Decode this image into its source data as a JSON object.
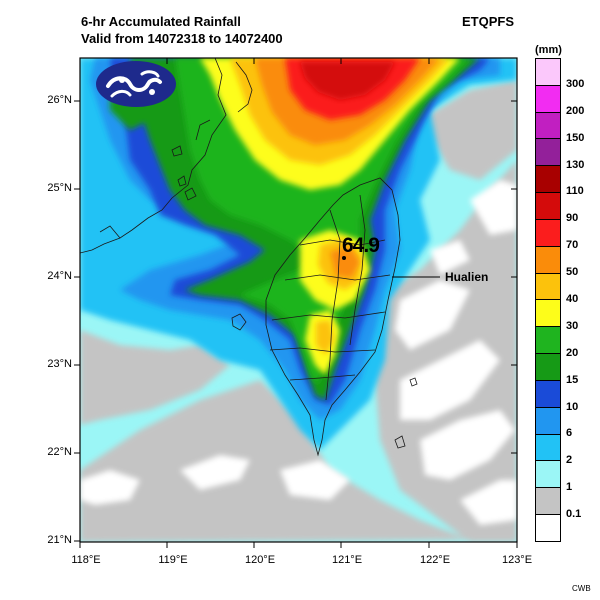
{
  "title": {
    "line1": "6-hr Accumulated Rainfall",
    "line2": "Valid from 14072318 to 14072400"
  },
  "model": "ETQPFS",
  "unit": "(mm)",
  "credit": "CWB",
  "logo_icon": "cwb-wave-logo-icon",
  "map": {
    "max_value_label": "64.9",
    "city_label": "Hualien"
  },
  "axes": {
    "lat": [
      "26°N",
      "25°N",
      "24°N",
      "23°N",
      "22°N",
      "21°N"
    ],
    "lon": [
      "118°E",
      "119°E",
      "120°E",
      "121°E",
      "122°E",
      "123°E"
    ]
  },
  "legend": {
    "labels": [
      "300",
      "200",
      "150",
      "130",
      "110",
      "90",
      "70",
      "50",
      "40",
      "30",
      "20",
      "15",
      "10",
      "6",
      "2",
      "1",
      "0.1"
    ],
    "colors": [
      "#fbc8fb",
      "#f22cf2",
      "#c11fc1",
      "#93209a",
      "#a80000",
      "#d40b0b",
      "#fb1d1d",
      "#fa8c0a",
      "#fcc20c",
      "#fdfd1a",
      "#1fb41f",
      "#169a16",
      "#1a4bd8",
      "#2196f0",
      "#22c2f5",
      "#9bf6f6",
      "#c4c4c4",
      "#ffffff"
    ]
  }
}
